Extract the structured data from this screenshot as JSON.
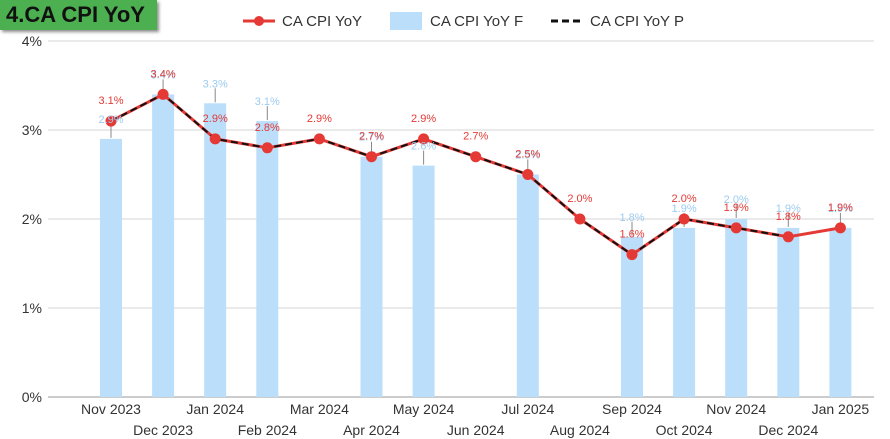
{
  "title": "4.CA CPI YoY",
  "legend": {
    "actual": "CA CPI YoY",
    "forecast": "CA CPI YoY F",
    "previous": "CA CPI YoY P"
  },
  "colors": {
    "actual": "#e53935",
    "forecast": "#bbdefb",
    "previous": "#111111",
    "title_bg": "#4caf50",
    "forecast_label": "#9ccbf0"
  },
  "chart_data": {
    "type": "bar",
    "categories": [
      "Nov 2023",
      "Dec 2023",
      "Jan 2024",
      "Feb 2024",
      "Mar 2024",
      "Apr 2024",
      "May 2024",
      "Jun 2024",
      "Jul 2024",
      "Aug 2024",
      "Sep 2024",
      "Oct 2024",
      "Nov 2024",
      "Dec 2024",
      "Jan 2025"
    ],
    "ylim": [
      0,
      4
    ],
    "yticks": [
      "0%",
      "1%",
      "2%",
      "3%",
      "4%"
    ],
    "grid": true,
    "legend_position": "top",
    "series": [
      {
        "name": "CA CPI YoY F",
        "kind": "bar",
        "values": [
          2.9,
          3.4,
          3.3,
          3.1,
          null,
          2.7,
          2.6,
          null,
          2.5,
          null,
          1.8,
          1.9,
          2.0,
          1.9,
          1.9
        ],
        "labels": [
          "2.9%",
          "3.4%",
          "3.3%",
          "3.1%",
          "",
          "2.7%",
          "2.6%",
          "",
          "2.5%",
          "",
          "1.8%",
          "1.9%",
          "2.0%",
          "1.9%",
          "1.9%"
        ]
      },
      {
        "name": "CA CPI YoY",
        "kind": "line",
        "values": [
          3.1,
          3.4,
          2.9,
          2.8,
          2.9,
          2.7,
          2.9,
          2.7,
          2.5,
          2.0,
          1.6,
          2.0,
          1.9,
          1.8,
          1.9
        ],
        "labels": [
          "3.1%",
          "3.4%",
          "2.9%",
          "2.8%",
          "2.9%",
          "2.7%",
          "2.9%",
          "2.7%",
          "2.5%",
          "2.0%",
          "1.6%",
          "2.0%",
          "1.9%",
          "1.8%",
          "1.9%"
        ]
      },
      {
        "name": "CA CPI YoY P",
        "kind": "dashed-line",
        "values": [
          3.1,
          3.4,
          2.9,
          2.8,
          2.9,
          2.7,
          2.9,
          2.7,
          2.5,
          2.0,
          1.6,
          2.0,
          1.9,
          1.8,
          null
        ]
      }
    ]
  }
}
